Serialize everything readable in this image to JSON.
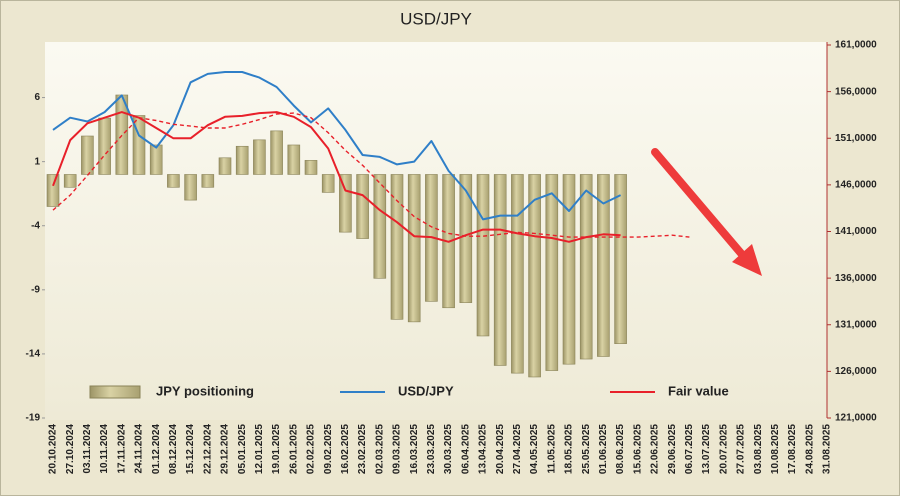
{
  "chart_data": {
    "type": "combo",
    "title": "USD/JPY",
    "categories": [
      "20.10.2024",
      "27.10.2024",
      "03.11.2024",
      "10.11.2024",
      "17.11.2024",
      "24.11.2024",
      "01.12.2024",
      "08.12.2024",
      "15.12.2024",
      "22.12.2024",
      "29.12.2024",
      "05.01.2025",
      "12.01.2025",
      "19.01.2025",
      "26.01.2025",
      "02.02.2025",
      "09.02.2025",
      "16.02.2025",
      "23.02.2025",
      "02.03.2025",
      "09.03.2025",
      "16.03.2025",
      "23.03.2025",
      "30.03.2025",
      "06.04.2025",
      "13.04.2025",
      "20.04.2025",
      "27.04.2025",
      "04.05.2025",
      "11.05.2025",
      "18.05.2025",
      "25.05.2025",
      "01.06.2025",
      "08.06.2025",
      "15.06.2025",
      "22.06.2025",
      "29.06.2025",
      "06.07.2025",
      "13.07.2025",
      "20.07.2025",
      "27.07.2025",
      "03.08.2025",
      "10.08.2025",
      "17.08.2025",
      "24.08.2025",
      "31.08.2025"
    ],
    "series": [
      {
        "name": "JPY positioning",
        "type": "bar",
        "color": "#c9c190",
        "values": [
          -2.5,
          -1,
          3.0,
          4.4,
          6.2,
          4.6,
          2.3,
          -1,
          -2,
          -1,
          1.3,
          2.2,
          2.7,
          3.4,
          2.3,
          1.1,
          -1.4,
          -4.5,
          -5.0,
          -8.1,
          -11.3,
          -11.5,
          -9.9,
          -10.4,
          -10.0,
          -12.6,
          -14.9,
          -15.5,
          -15.8,
          -15.3,
          -14.8,
          -14.4,
          -14.2,
          -13.2,
          null,
          null,
          null,
          null,
          null,
          null,
          null,
          null,
          null,
          null,
          null,
          null
        ]
      },
      {
        "name": "USD/JPY",
        "type": "line",
        "axis": "y2",
        "color": "#2f7fc8",
        "values": [
          151.9,
          153.2,
          152.8,
          153.8,
          155.6,
          151.3,
          150.0,
          152.4,
          157.0,
          157.9,
          158.1,
          158.1,
          157.5,
          156.5,
          154.5,
          152.7,
          154.2,
          151.9,
          149.2,
          149.0,
          148.2,
          148.5,
          150.7,
          147.5,
          145.4,
          142.3,
          142.7,
          142.7,
          144.4,
          145.1,
          143.2,
          145.4,
          144.0,
          144.9,
          null,
          null,
          null,
          null,
          null,
          null,
          null,
          null,
          null,
          null,
          null,
          null
        ]
      },
      {
        "name": "Fair value",
        "type": "line",
        "axis": "y2",
        "color": "#e8202a",
        "values": [
          145.9,
          150.8,
          152.6,
          153.2,
          153.8,
          153.2,
          152.1,
          151.0,
          151.0,
          152.4,
          153.3,
          153.4,
          153.7,
          153.8,
          153.3,
          152.2,
          149.9,
          145.4,
          144.9,
          143.3,
          142.0,
          140.5,
          140.4,
          139.9,
          140.6,
          141.2,
          141.2,
          140.8,
          140.5,
          140.3,
          139.9,
          140.4,
          140.7,
          140.6,
          null,
          null,
          null,
          null,
          null,
          null,
          null,
          null,
          null,
          null,
          null,
          null
        ]
      },
      {
        "type": "line",
        "axis": "y2",
        "color": "#e8202a",
        "line_style": "dashed",
        "values": [
          143.3,
          144.9,
          147.0,
          149.2,
          151.3,
          153.2,
          152.9,
          152.5,
          152.3,
          152.1,
          152.1,
          152.5,
          153.0,
          153.6,
          153.7,
          153.2,
          151.6,
          149.7,
          148.1,
          146.2,
          144.3,
          142.6,
          141.5,
          140.8,
          140.5,
          140.5,
          140.7,
          140.9,
          140.8,
          140.6,
          140.4,
          140.4,
          140.4,
          140.4,
          140.4,
          140.5,
          140.6,
          140.4,
          null,
          null,
          null,
          null,
          null,
          null,
          null,
          null
        ]
      }
    ],
    "ylim": [
      -19,
      10.1
    ],
    "yticks": [
      -19,
      -14,
      -9,
      -4,
      1,
      6
    ],
    "y2lim": [
      121,
      161
    ],
    "y2ticks": [
      {
        "value": 121,
        "label": "121,0000"
      },
      {
        "value": 126,
        "label": "126,0000"
      },
      {
        "value": 131,
        "label": "131,0000"
      },
      {
        "value": 136,
        "label": "136,0000"
      },
      {
        "value": 141,
        "label": "141,0000"
      },
      {
        "value": 146,
        "label": "146,0000"
      },
      {
        "value": 151,
        "label": "151,0000"
      },
      {
        "value": 156,
        "label": "156,0000"
      },
      {
        "value": 161,
        "label": "161,0000"
      }
    ],
    "grid": false,
    "legend": "bottom"
  }
}
